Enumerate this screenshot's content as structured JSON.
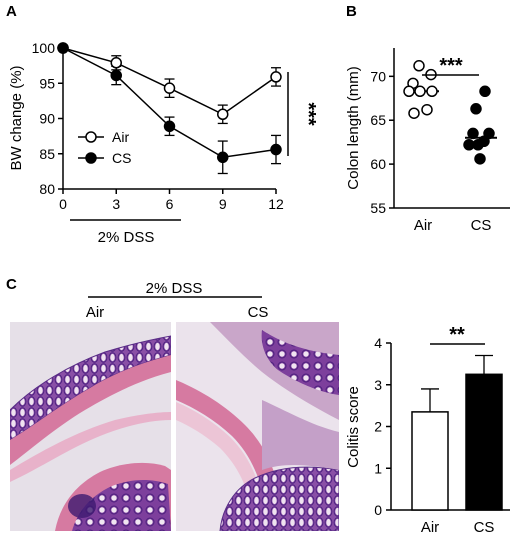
{
  "panel_letters": {
    "a": "A",
    "b": "B",
    "c": "C"
  },
  "chart_data": [
    {
      "panel": "A",
      "type": "line",
      "xlabel": "",
      "ylabel": "BW change (%)",
      "x": [
        0,
        3,
        6,
        9,
        12
      ],
      "xticks": [
        "0",
        "3",
        "6",
        "9",
        "12"
      ],
      "yticks": [
        "80",
        "85",
        "90",
        "95",
        "100"
      ],
      "xlim": [
        0,
        12
      ],
      "ylim": [
        80,
        100
      ],
      "series": [
        {
          "name": "Air",
          "marker": "open-circle",
          "values": [
            100,
            97.9,
            94.3,
            90.6,
            95.9
          ],
          "errors": [
            0,
            1.0,
            1.3,
            1.3,
            1.3
          ]
        },
        {
          "name": "CS",
          "marker": "filled-circle",
          "values": [
            100,
            96.1,
            88.9,
            84.5,
            85.6
          ],
          "errors": [
            0,
            1.3,
            1.3,
            2.3,
            2.0
          ]
        }
      ],
      "significance": "***",
      "annotation": "2% DSS",
      "legend_placement": "bottom-left"
    },
    {
      "panel": "B",
      "type": "scatter",
      "ylabel": "Colon length (mm)",
      "categories": [
        "Air",
        "CS"
      ],
      "yticks": [
        "55",
        "60",
        "65",
        "70"
      ],
      "ylim": [
        55,
        73
      ],
      "series": [
        {
          "name": "Air",
          "marker": "open-circle",
          "values": [
            71.2,
            70.2,
            69.2,
            68.3,
            68.3,
            68.3,
            65.8,
            66.2
          ],
          "median": 68.3
        },
        {
          "name": "CS",
          "marker": "filled-circle",
          "values": [
            68.3,
            66.3,
            63.5,
            63.5,
            62.6,
            62.2,
            62.2,
            60.6
          ],
          "median": 63.0
        }
      ],
      "significance": "***"
    },
    {
      "panel": "C",
      "type": "bar",
      "ylabel": "Colitis score",
      "categories": [
        "Air",
        "CS"
      ],
      "values": [
        2.35,
        3.25
      ],
      "errors": [
        0.55,
        0.45
      ],
      "yticks": [
        "0",
        "1",
        "2",
        "3",
        "4"
      ],
      "ylim": [
        0,
        4
      ],
      "bar_colors": [
        "#ffffff",
        "#000000"
      ],
      "significance": "**"
    }
  ],
  "histology": {
    "header": "2% DSS",
    "labels": [
      "Air",
      "CS"
    ]
  },
  "colors": {
    "he_background": "#e9e2ea",
    "he_pink": "#d9799f",
    "he_purple": "#5a2d87",
    "he_light": "#c7b2cf"
  }
}
